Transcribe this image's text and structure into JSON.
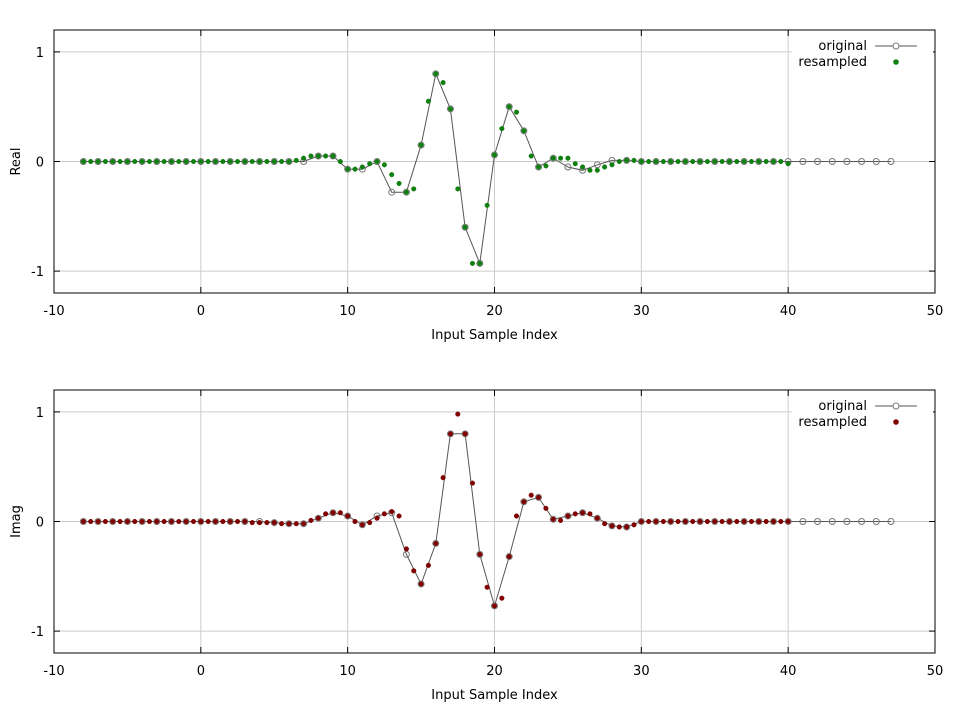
{
  "chart_data": [
    {
      "type": "line",
      "xlabel": "Input Sample Index",
      "ylabel": "Real",
      "xlim": [
        -10,
        50
      ],
      "ylim": [
        -1.2,
        1.2
      ],
      "xticks": [
        -10,
        0,
        10,
        20,
        30,
        40,
        50
      ],
      "xtick_labels": [
        "-10",
        "0",
        "10",
        "20",
        "30",
        "40",
        "50"
      ],
      "yticks": [
        -1,
        0,
        1
      ],
      "ytick_labels": [
        "-1",
        "0",
        "1"
      ],
      "grid": true,
      "legend_position": "top-right",
      "legend": [
        "original",
        "resampled"
      ],
      "colors": {
        "original": "#555555",
        "resampled": "#108010"
      },
      "series": [
        {
          "name": "original",
          "x": [
            -8,
            -7,
            -6,
            -5,
            -4,
            -3,
            -2,
            -1,
            0,
            1,
            2,
            3,
            4,
            5,
            6,
            7,
            8,
            9,
            10,
            11,
            12,
            13,
            14,
            15,
            16,
            17,
            18,
            19,
            20,
            21,
            22,
            23,
            24,
            25,
            26,
            27,
            28,
            29,
            30,
            31,
            32,
            33,
            34,
            35,
            36,
            37,
            38,
            39,
            40,
            41,
            42,
            43,
            44,
            45,
            46,
            47
          ],
          "y": [
            0,
            0,
            0,
            0,
            0,
            0,
            0,
            0,
            0,
            0,
            0,
            0,
            0,
            0,
            0,
            0,
            0.05,
            0.05,
            -0.07,
            -0.07,
            0,
            -0.28,
            -0.28,
            0.15,
            0.8,
            0.48,
            -0.6,
            -0.93,
            0.06,
            0.5,
            0.28,
            -0.05,
            0.03,
            -0.05,
            -0.08,
            -0.03,
            0.01,
            0.01,
            0,
            0,
            0,
            0,
            0,
            0,
            0,
            0,
            0,
            0,
            0,
            0,
            0,
            0,
            0,
            0,
            0,
            0
          ]
        },
        {
          "name": "resampled",
          "x": [
            -8,
            -7.5,
            -7,
            -6.5,
            -6,
            -5.5,
            -5,
            -4.5,
            -4,
            -3.5,
            -3,
            -2.5,
            -2,
            -1.5,
            -1,
            -0.5,
            0,
            0.5,
            1,
            1.5,
            2,
            2.5,
            3,
            3.5,
            4,
            4.5,
            5,
            5.5,
            6,
            6.5,
            7,
            7.5,
            8,
            8.5,
            9,
            9.5,
            10,
            10.5,
            11,
            11.5,
            12,
            12.5,
            13,
            13.5,
            14,
            14.5,
            15,
            15.5,
            16,
            16.5,
            17,
            17.5,
            18,
            18.5,
            19,
            19.5,
            20,
            20.5,
            21,
            21.5,
            22,
            22.5,
            23,
            23.5,
            24,
            24.5,
            25,
            25.5,
            26,
            26.5,
            27,
            27.5,
            28,
            28.5,
            29,
            29.5,
            30,
            30.5,
            31,
            31.5,
            32,
            32.5,
            33,
            33.5,
            34,
            34.5,
            35,
            35.5,
            36,
            36.5,
            37,
            37.5,
            38,
            38.5,
            39,
            39.5,
            40
          ],
          "y": [
            0,
            0,
            0,
            0,
            0,
            0,
            0,
            0,
            0,
            0,
            0,
            0,
            0,
            0,
            0,
            0,
            0,
            0,
            0,
            0,
            0,
            0,
            0,
            0,
            0,
            0,
            0,
            0,
            0,
            0.01,
            0.03,
            0.05,
            0.05,
            0.05,
            0.05,
            0,
            -0.07,
            -0.07,
            -0.05,
            -0.02,
            0,
            -0.03,
            -0.12,
            -0.2,
            -0.28,
            -0.25,
            0.15,
            0.55,
            0.8,
            0.72,
            0.48,
            -0.25,
            -0.6,
            -0.93,
            -0.93,
            -0.4,
            0.06,
            0.3,
            0.5,
            0.45,
            0.28,
            0.05,
            -0.05,
            -0.04,
            0.03,
            0.03,
            0.03,
            -0.02,
            -0.05,
            -0.08,
            -0.08,
            -0.05,
            -0.03,
            0,
            0.01,
            0.01,
            0,
            0,
            0,
            0,
            0,
            0,
            0,
            0,
            0,
            0,
            0,
            0,
            0,
            0,
            0,
            0,
            0,
            0,
            0,
            0,
            -0.02
          ]
        }
      ]
    },
    {
      "type": "line",
      "xlabel": "Input Sample Index",
      "ylabel": "Imag",
      "xlim": [
        -10,
        50
      ],
      "ylim": [
        -1.2,
        1.2
      ],
      "xticks": [
        -10,
        0,
        10,
        20,
        30,
        40,
        50
      ],
      "xtick_labels": [
        "-10",
        "0",
        "10",
        "20",
        "30",
        "40",
        "50"
      ],
      "yticks": [
        -1,
        0,
        1
      ],
      "ytick_labels": [
        "-1",
        "0",
        "1"
      ],
      "grid": true,
      "legend_position": "top-right",
      "legend": [
        "original",
        "resampled"
      ],
      "colors": {
        "original": "#555555",
        "resampled": "#800000"
      },
      "series": [
        {
          "name": "original",
          "x": [
            -8,
            -7,
            -6,
            -5,
            -4,
            -3,
            -2,
            -1,
            0,
            1,
            2,
            3,
            4,
            5,
            6,
            7,
            8,
            9,
            10,
            11,
            12,
            13,
            14,
            15,
            16,
            17,
            18,
            19,
            20,
            21,
            22,
            23,
            24,
            25,
            26,
            27,
            28,
            29,
            30,
            31,
            32,
            33,
            34,
            35,
            36,
            37,
            38,
            39,
            40,
            41,
            42,
            43,
            44,
            45,
            46,
            47
          ],
          "y": [
            0,
            0,
            0,
            0,
            0,
            0,
            0,
            0,
            0,
            0,
            0,
            0,
            0,
            -0.01,
            -0.02,
            -0.02,
            0.03,
            0.08,
            0.05,
            -0.03,
            0.05,
            0.08,
            -0.3,
            -0.57,
            -0.2,
            0.8,
            0.8,
            -0.3,
            -0.77,
            -0.32,
            0.18,
            0.22,
            0.02,
            0.05,
            0.08,
            0.03,
            -0.04,
            -0.05,
            0,
            0,
            0,
            0,
            0,
            0,
            0,
            0,
            0,
            0,
            0,
            0,
            0,
            0,
            0,
            0,
            0,
            0
          ]
        },
        {
          "name": "resampled",
          "x": [
            -8,
            -7.5,
            -7,
            -6.5,
            -6,
            -5.5,
            -5,
            -4.5,
            -4,
            -3.5,
            -3,
            -2.5,
            -2,
            -1.5,
            -1,
            -0.5,
            0,
            0.5,
            1,
            1.5,
            2,
            2.5,
            3,
            3.5,
            4,
            4.5,
            5,
            5.5,
            6,
            6.5,
            7,
            7.5,
            8,
            8.5,
            9,
            9.5,
            10,
            10.5,
            11,
            11.5,
            12,
            12.5,
            13,
            13.5,
            14,
            14.5,
            15,
            15.5,
            16,
            16.5,
            17,
            17.5,
            18,
            18.5,
            19,
            19.5,
            20,
            20.5,
            21,
            21.5,
            22,
            22.5,
            23,
            23.5,
            24,
            24.5,
            25,
            25.5,
            26,
            26.5,
            27,
            27.5,
            28,
            28.5,
            29,
            29.5,
            30,
            30.5,
            31,
            31.5,
            32,
            32.5,
            33,
            33.5,
            34,
            34.5,
            35,
            35.5,
            36,
            36.5,
            37,
            37.5,
            38,
            38.5,
            39,
            39.5,
            40
          ],
          "y": [
            0,
            0,
            0,
            0,
            0,
            0,
            0,
            0,
            0,
            0,
            0,
            0,
            0,
            0,
            0,
            0,
            0,
            0,
            0,
            0,
            0,
            0,
            0,
            -0.01,
            -0.01,
            -0.01,
            -0.01,
            -0.02,
            -0.02,
            -0.02,
            -0.02,
            0.01,
            0.03,
            0.07,
            0.08,
            0.08,
            0.05,
            0,
            -0.03,
            -0.01,
            0.03,
            0.07,
            0.09,
            0.05,
            -0.25,
            -0.45,
            -0.57,
            -0.4,
            -0.2,
            0.4,
            0.8,
            0.98,
            0.8,
            0.35,
            -0.3,
            -0.6,
            -0.77,
            -0.7,
            -0.32,
            0.05,
            0.18,
            0.24,
            0.22,
            0.12,
            0.02,
            0.01,
            0.05,
            0.07,
            0.08,
            0.07,
            0.03,
            -0.02,
            -0.04,
            -0.05,
            -0.05,
            -0.03,
            0,
            0,
            0,
            0,
            0,
            0,
            0,
            0,
            0,
            0,
            0,
            0,
            0,
            0,
            0,
            0,
            0,
            0,
            0,
            0,
            0
          ]
        }
      ]
    }
  ]
}
